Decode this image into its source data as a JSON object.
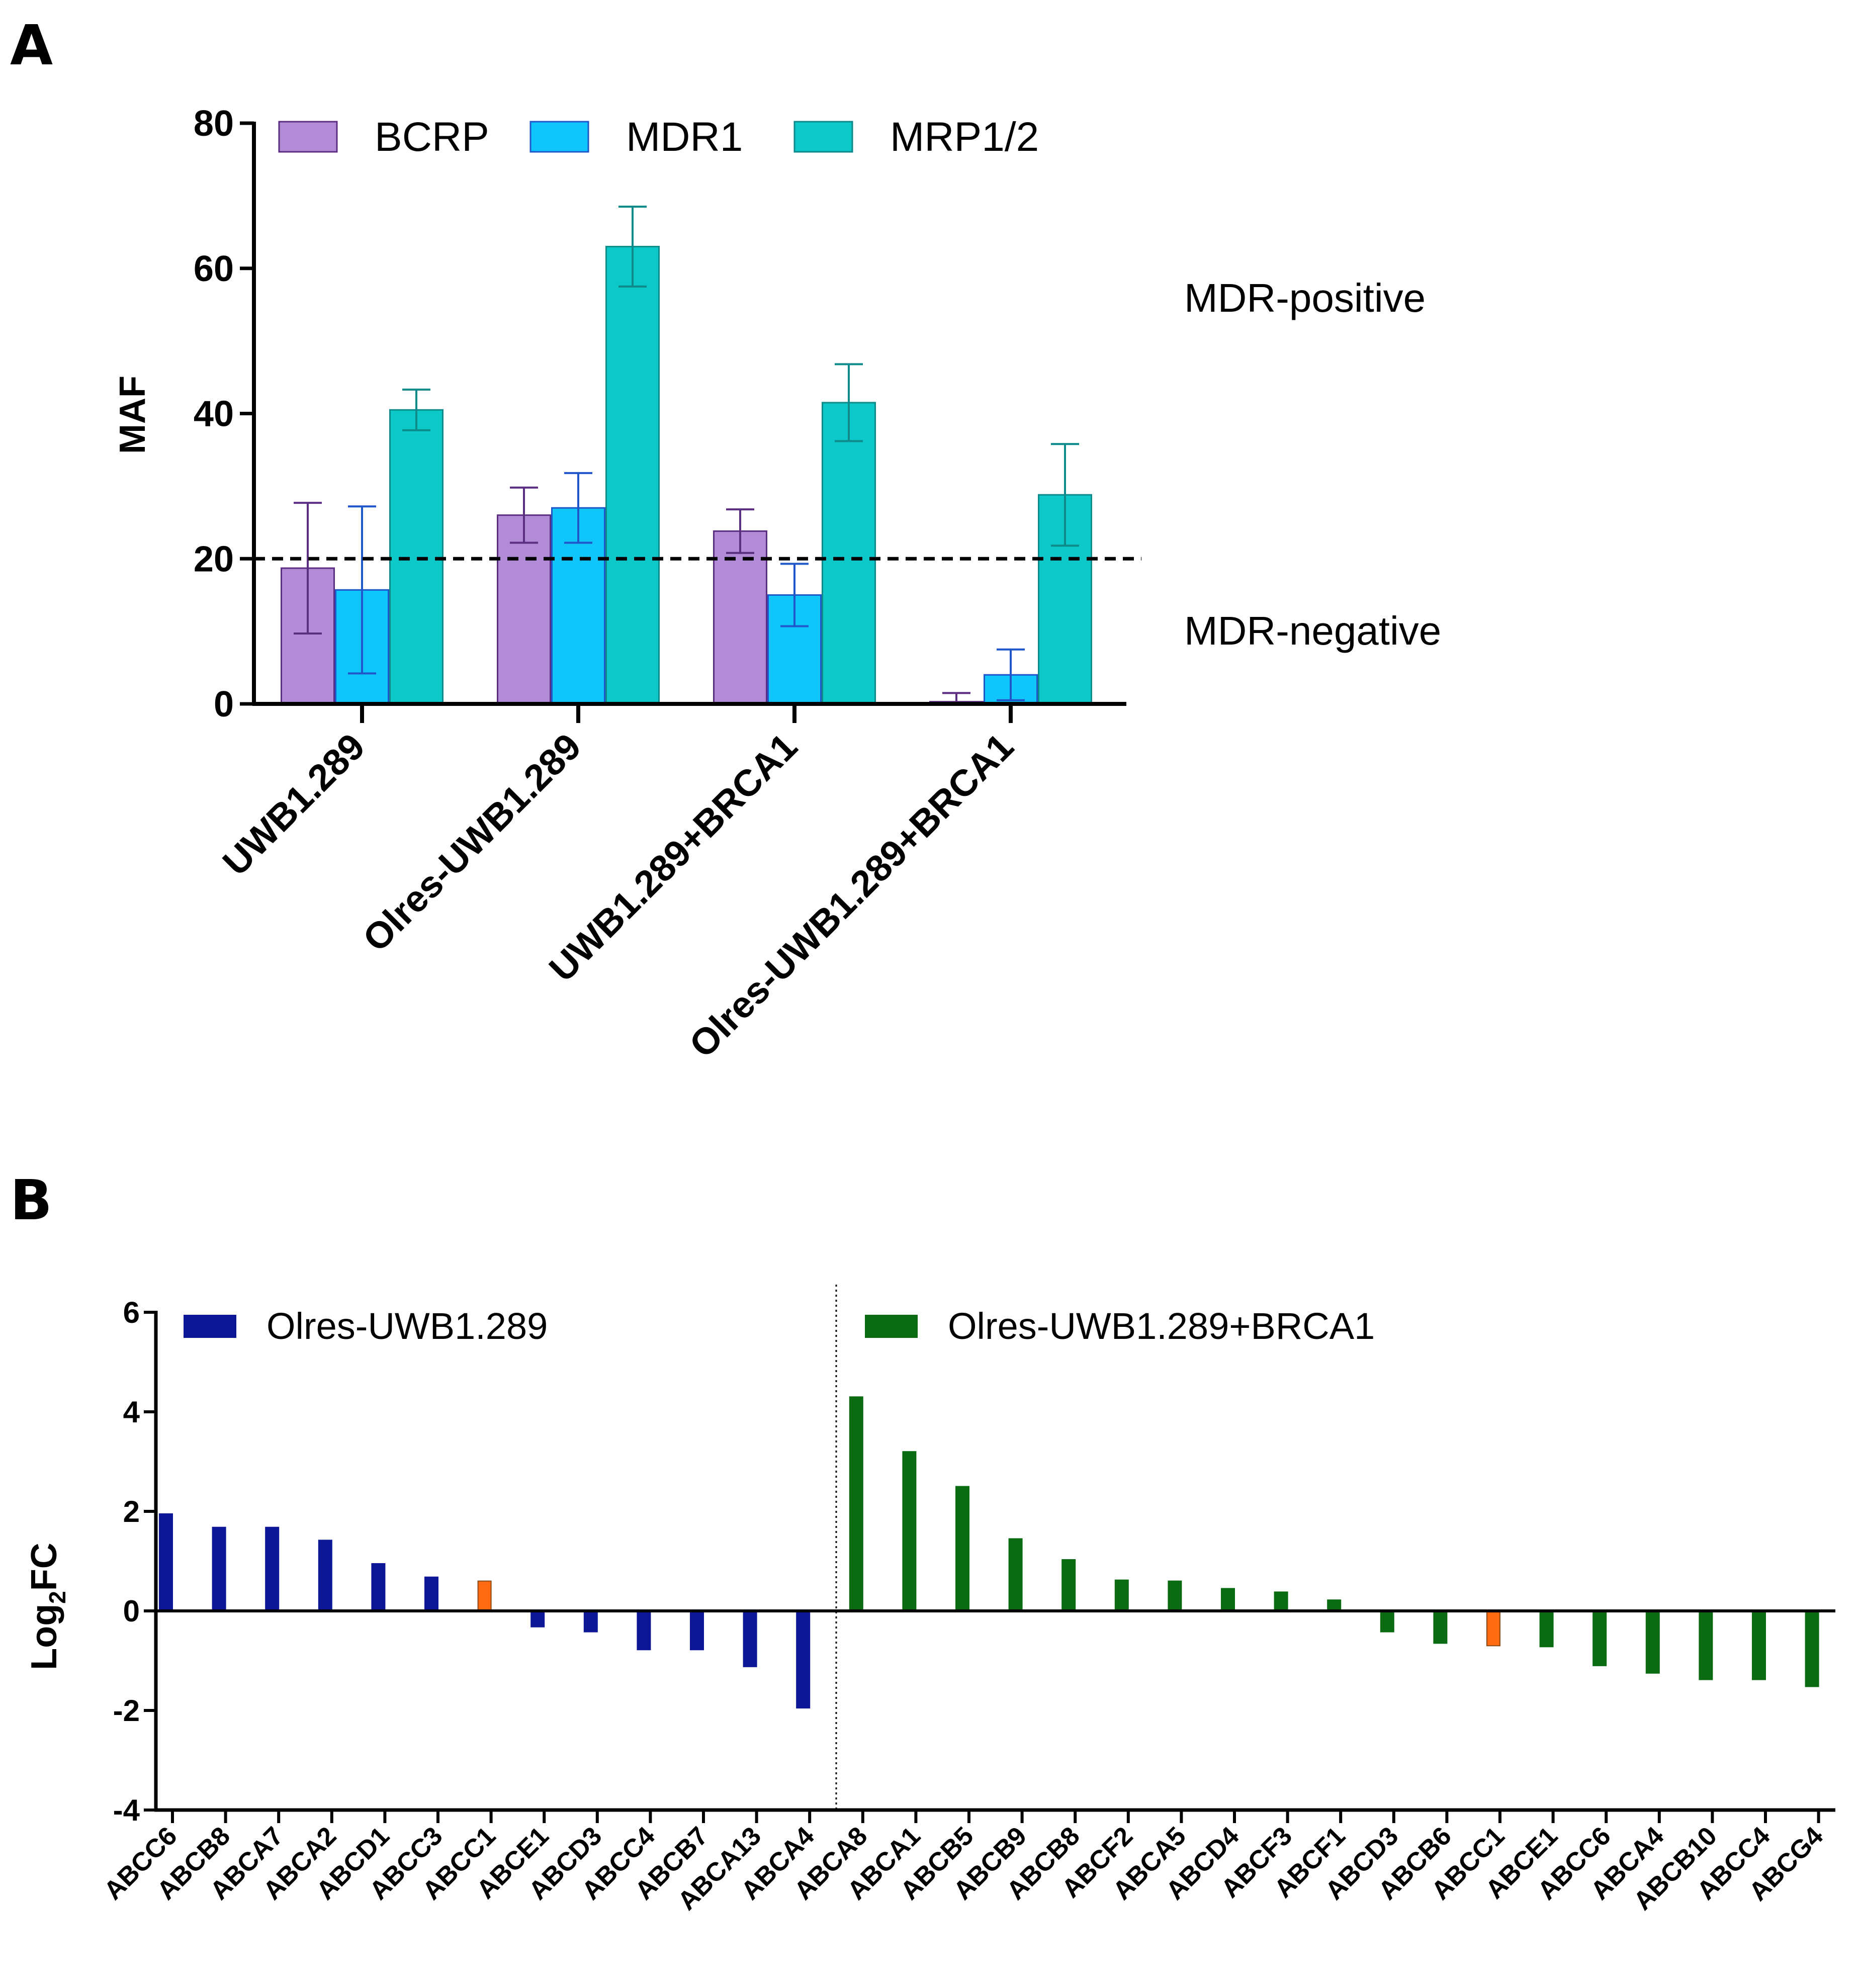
{
  "chart_data": [
    {
      "panel": "A",
      "type": "bar",
      "ylabel": "MAF",
      "ylim": [
        0,
        80
      ],
      "yticks": [
        0,
        20,
        40,
        60,
        80
      ],
      "categories": [
        "UWB1.289",
        "Olres-UWB1.289",
        "UWB1.289+BRCA1",
        "Olres-UWB1.289+BRCA1"
      ],
      "series": [
        {
          "name": "BCRP",
          "color": "#B28BD6",
          "stroke": "#5B2E82",
          "values": [
            18.7,
            26.0,
            23.8,
            0.3
          ],
          "errors": [
            9.0,
            3.8,
            3.0,
            1.2
          ]
        },
        {
          "name": "MDR1",
          "color": "#0FC5FA",
          "stroke": "#1F56C9",
          "values": [
            15.7,
            27.0,
            15.0,
            4.0
          ],
          "errors": [
            11.5,
            4.8,
            4.3,
            3.5
          ]
        },
        {
          "name": "MRP1/2",
          "color": "#0CC8C8",
          "stroke": "#0E8A8A",
          "values": [
            40.5,
            63.0,
            41.5,
            28.8
          ],
          "errors": [
            2.8,
            5.5,
            5.3,
            7.0
          ]
        }
      ],
      "threshold": 20,
      "annotations": [
        "MDR-positive",
        "MDR-negative"
      ],
      "legend_position": "top"
    },
    {
      "panel": "B",
      "type": "bar",
      "ylabel": "Log",
      "ylabel_sub": "2",
      "ylabel_end": "FC",
      "ylim": [
        -4,
        6
      ],
      "yticks": [
        6,
        4,
        2,
        0,
        -2,
        -4
      ],
      "highlight_color": "#FF6A13",
      "series": [
        {
          "name": "Olres-UWB1.289",
          "color": "#0D1796",
          "categories": [
            "ABCC6",
            "ABCB8",
            "ABCA7",
            "ABCA2",
            "ABCD1",
            "ABCC3",
            "ABCC1",
            "ABCE1",
            "ABCD3",
            "ABCC4",
            "ABCB7",
            "ABCA13",
            "ABCA4"
          ],
          "values": [
            1.95,
            1.68,
            1.68,
            1.42,
            0.95,
            0.68,
            0.6,
            -0.32,
            -0.42,
            -0.78,
            -0.78,
            -1.12,
            -1.95
          ],
          "highlight": [
            "ABCC1"
          ]
        },
        {
          "name": "Olres-UWB1.289+BRCA1",
          "color": "#0B6B12",
          "categories": [
            "ABCA8",
            "ABCA1",
            "ABCB5",
            "ABCB9",
            "ABCB8",
            "ABCF2",
            "ABCA5",
            "ABCD4",
            "ABCF3",
            "ABCF1",
            "ABCD3",
            "ABCB6",
            "ABCC1",
            "ABCE1",
            "ABCC6",
            "ABCA4",
            "ABCB10",
            "ABCC4",
            "ABCG4"
          ],
          "values": [
            4.3,
            3.2,
            2.5,
            1.45,
            1.03,
            0.62,
            0.6,
            0.45,
            0.38,
            0.22,
            -0.42,
            -0.65,
            -0.7,
            -0.72,
            -1.1,
            -1.25,
            -1.38,
            -1.38,
            -1.52
          ],
          "highlight": [
            "ABCC1"
          ]
        }
      ]
    }
  ],
  "panels": {
    "a": "A",
    "b": "B"
  }
}
